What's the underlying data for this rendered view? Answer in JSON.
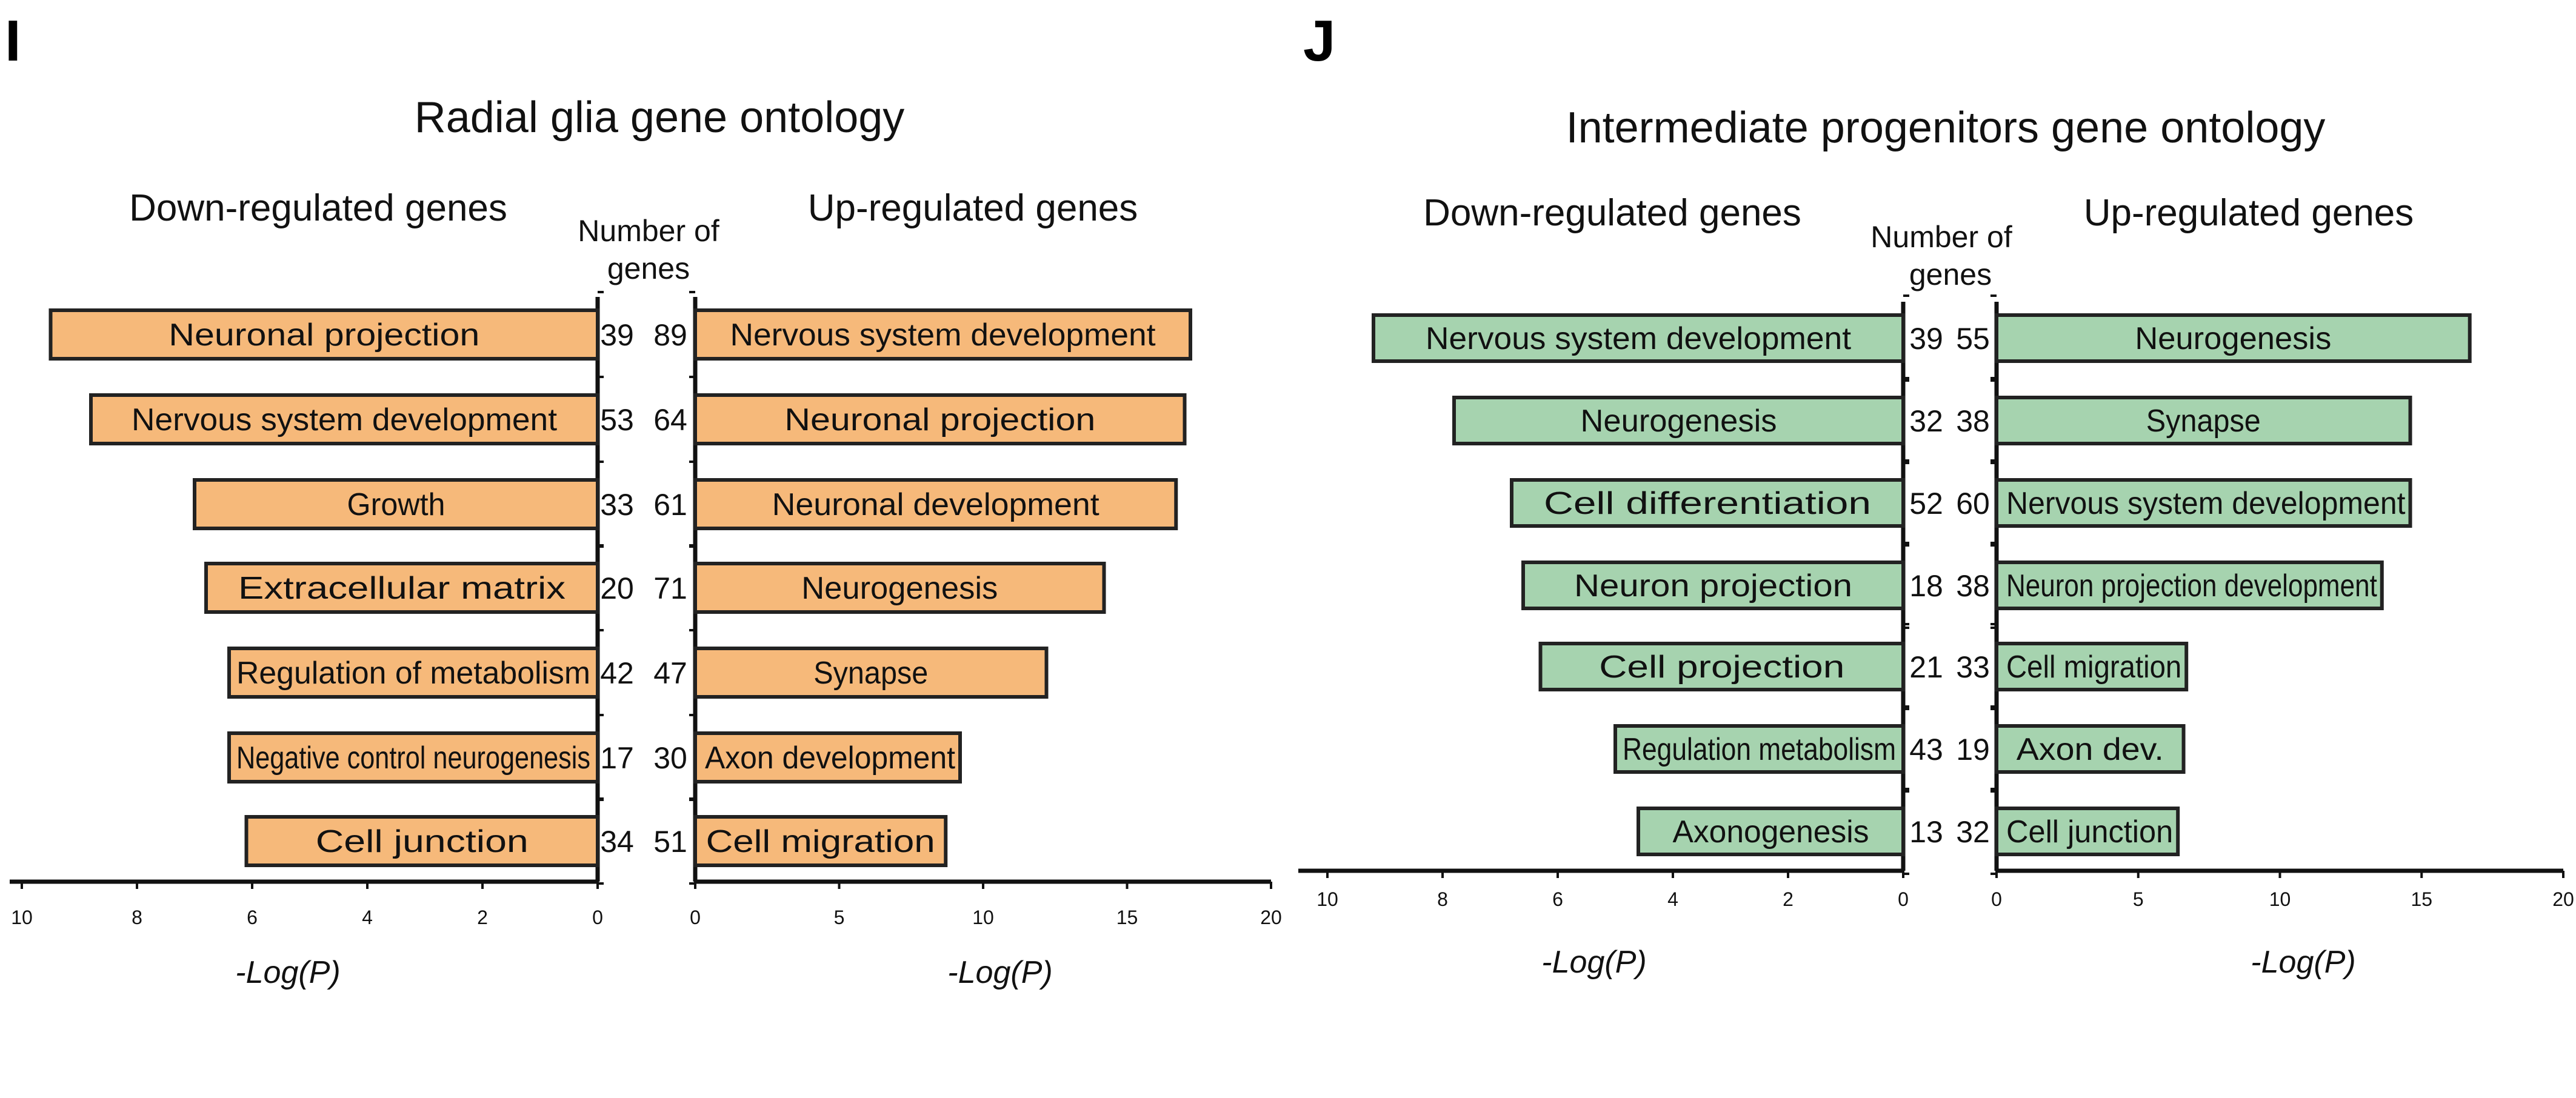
{
  "chart_data": [
    {
      "type": "bar",
      "panel": "I",
      "title": "Radial glia gene ontology",
      "bar_color": "#F6B97A",
      "count_header": [
        "Number of",
        "genes"
      ],
      "xlabel": "-Log(P)",
      "down": {
        "heading": "Down-regulated genes",
        "xlim": [
          0,
          10
        ],
        "ticks": [
          "10",
          "8",
          "6",
          "4",
          "2",
          "0"
        ],
        "categories": [
          "Neuronal projection",
          "Nervous system development",
          "Growth",
          "Extracellular matrix",
          "Regulation of metabolism",
          "Negative control neurogenesis",
          "Cell junction"
        ],
        "values": [
          9.5,
          8.8,
          7.0,
          6.8,
          6.4,
          6.4,
          6.1
        ],
        "counts": [
          39,
          53,
          33,
          20,
          42,
          17,
          34
        ]
      },
      "up": {
        "heading": "Up-regulated genes",
        "xlim": [
          0,
          20
        ],
        "ticks": [
          "0",
          "5",
          "10",
          "15",
          "20"
        ],
        "categories": [
          "Nervous system development",
          "Neuronal projection",
          "Neuronal development",
          "Neurogenesis",
          "Synapse",
          "Axon development",
          "Cell migration"
        ],
        "values": [
          17.2,
          17.0,
          16.7,
          14.2,
          12.2,
          9.2,
          8.7
        ],
        "counts": [
          89,
          64,
          61,
          71,
          47,
          30,
          51
        ]
      }
    },
    {
      "type": "bar",
      "panel": "J",
      "title": "Intermediate progenitors gene ontology",
      "bar_color": "#A6D3AF",
      "count_header": [
        "Number of",
        "genes"
      ],
      "xlabel": "-Log(P)",
      "down": {
        "heading": "Down-regulated genes",
        "xlim": [
          0,
          10
        ],
        "ticks": [
          "10",
          "8",
          "6",
          "4",
          "2",
          "0"
        ],
        "categories": [
          "Nervous system development",
          "Neurogenesis",
          "Cell differentiation",
          "Neuron projection",
          "Cell projection",
          "Regulation metabolism",
          "Axonogenesis"
        ],
        "values": [
          9.2,
          7.8,
          6.8,
          6.6,
          6.3,
          5.0,
          4.6
        ],
        "counts": [
          39,
          32,
          52,
          18,
          21,
          43,
          13
        ]
      },
      "up": {
        "heading": "Up-regulated genes",
        "xlim": [
          0,
          20
        ],
        "ticks": [
          "0",
          "5",
          "10",
          "15",
          "20"
        ],
        "categories": [
          "Neurogenesis",
          "Synapse",
          "Nervous system development",
          "Neuron projection development",
          "Cell migration",
          "Axon dev.",
          "Cell junction"
        ],
        "values": [
          16.7,
          14.6,
          14.6,
          13.6,
          6.7,
          6.6,
          6.4
        ],
        "counts": [
          55,
          38,
          60,
          38,
          33,
          19,
          32
        ]
      }
    }
  ]
}
